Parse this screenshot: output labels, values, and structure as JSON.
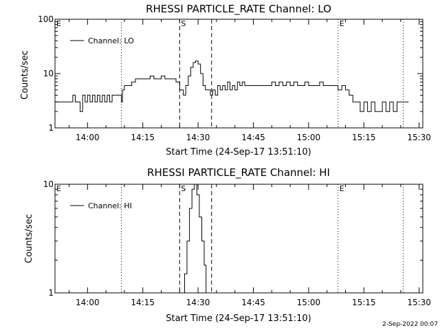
{
  "footer_timestamp": "2-Sep-2022 00:07",
  "chart_data": [
    {
      "type": "line",
      "title": "RHESSI PARTICLE_RATE Channel: LO",
      "xlabel": "Start Time (24-Sep-17 13:51:10)",
      "ylabel": "Counts/sec",
      "y_scale": "log",
      "ylim": [
        1,
        100
      ],
      "y_ticks": [
        "1",
        "10",
        "100"
      ],
      "xlim": [
        "13:51:10",
        "15:31:00"
      ],
      "x_ticks": [
        "14:00",
        "14:15",
        "14:30",
        "14:45",
        "15:00",
        "15:15",
        "15:30"
      ],
      "legend_placement": "top-left",
      "legend": [
        "Channel: LO"
      ],
      "markers": [
        {
          "label": "E",
          "time": "13:51:10",
          "style": "dotted"
        },
        {
          "label": "",
          "time": "14:09:10",
          "style": "dotted"
        },
        {
          "label": "S",
          "time": "14:25:00",
          "style": "dashed"
        },
        {
          "label": "",
          "time": "14:33:40",
          "style": "dashed"
        },
        {
          "label": "E",
          "time": "15:08:00",
          "style": "dotted"
        },
        {
          "label": "",
          "time": "15:25:40",
          "style": "dotted"
        }
      ],
      "series": [
        {
          "name": "Channel: LO",
          "x": [
            "13:51:10",
            "13:55:20",
            "13:56:00",
            "13:56:40",
            "13:57:20",
            "13:58:00",
            "13:58:40",
            "13:59:20",
            "14:00:00",
            "14:00:40",
            "14:01:20",
            "14:02:00",
            "14:02:40",
            "14:03:20",
            "14:04:00",
            "14:04:40",
            "14:05:20",
            "14:06:00",
            "14:06:40",
            "14:07:20",
            "14:08:00",
            "14:08:40",
            "14:09:10",
            "14:09:30",
            "14:10:00",
            "14:11:00",
            "14:12:00",
            "14:13:00",
            "14:14:00",
            "14:15:00",
            "14:16:00",
            "14:17:00",
            "14:18:00",
            "14:19:00",
            "14:20:00",
            "14:21:00",
            "14:22:00",
            "14:23:00",
            "14:24:00",
            "14:25:00",
            "14:26:00",
            "14:26:40",
            "14:27:20",
            "14:28:00",
            "14:28:40",
            "14:29:20",
            "14:30:00",
            "14:30:40",
            "14:31:20",
            "14:32:00",
            "14:32:40",
            "14:33:20",
            "14:34:00",
            "14:34:40",
            "14:35:20",
            "14:36:00",
            "14:36:40",
            "14:37:20",
            "14:38:00",
            "14:38:40",
            "14:39:20",
            "14:40:00",
            "14:40:40",
            "14:41:20",
            "14:42:00",
            "14:42:40",
            "14:43:20",
            "14:44:00",
            "14:45:00",
            "14:46:00",
            "14:47:00",
            "14:48:00",
            "14:49:00",
            "14:50:00",
            "14:51:00",
            "14:52:00",
            "14:53:00",
            "14:54:00",
            "14:55:00",
            "14:56:00",
            "14:57:00",
            "14:58:00",
            "14:59:00",
            "15:00:00",
            "15:01:00",
            "15:02:00",
            "15:03:00",
            "15:04:00",
            "15:05:00",
            "15:06:00",
            "15:07:00",
            "15:08:00",
            "15:09:00",
            "15:10:00",
            "15:11:00",
            "15:12:00",
            "15:13:00",
            "15:14:00",
            "15:15:00",
            "15:16:00",
            "15:17:00",
            "15:18:00",
            "15:19:00",
            "15:20:00",
            "15:21:00",
            "15:22:00",
            "15:23:00",
            "15:24:00",
            "15:25:00",
            "15:26:00"
          ],
          "values": [
            3,
            3,
            4,
            3,
            3,
            2,
            4,
            3,
            4,
            3,
            4,
            3,
            4,
            3,
            4,
            3,
            4,
            3,
            4,
            4,
            4,
            4,
            3,
            5,
            6,
            6,
            7,
            8,
            8,
            8,
            8,
            9,
            8,
            8,
            9,
            8,
            8,
            8,
            7,
            5,
            4,
            6,
            9,
            13,
            16,
            17,
            15,
            10,
            6,
            5,
            5,
            4,
            5,
            4,
            6,
            5,
            6,
            5,
            7,
            5,
            6,
            5,
            7,
            6,
            7,
            6,
            6,
            6,
            6,
            6,
            6,
            6,
            6,
            7,
            6,
            7,
            6,
            7,
            6,
            7,
            6,
            6,
            7,
            6,
            6,
            6,
            7,
            6,
            6,
            6,
            6,
            5,
            6,
            5,
            4,
            3,
            3,
            2,
            3,
            2,
            3,
            2,
            2,
            3,
            2,
            3,
            2,
            3,
            3,
            3
          ]
        }
      ]
    },
    {
      "type": "line",
      "title": "RHESSI PARTICLE_RATE Channel: HI",
      "xlabel": "Start Time (24-Sep-17 13:51:10)",
      "ylabel": "Counts/sec",
      "y_scale": "log",
      "ylim": [
        1,
        10
      ],
      "y_ticks": [
        "1",
        "10"
      ],
      "xlim": [
        "13:51:10",
        "15:31:00"
      ],
      "x_ticks": [
        "14:00",
        "14:15",
        "14:30",
        "14:45",
        "15:00",
        "15:15",
        "15:30"
      ],
      "legend_placement": "top-left",
      "legend": [
        "Channel: HI"
      ],
      "markers": [
        {
          "label": "E",
          "time": "13:51:10",
          "style": "dotted"
        },
        {
          "label": "",
          "time": "14:09:10",
          "style": "dotted"
        },
        {
          "label": "S",
          "time": "14:25:00",
          "style": "dashed"
        },
        {
          "label": "",
          "time": "14:33:40",
          "style": "dashed"
        },
        {
          "label": "E",
          "time": "15:08:00",
          "style": "dotted"
        },
        {
          "label": "",
          "time": "15:25:40",
          "style": "dotted"
        }
      ],
      "series": [
        {
          "name": "Channel: HI",
          "x": [
            "14:25:30",
            "14:26:20",
            "14:27:00",
            "14:27:40",
            "14:28:20",
            "14:29:00",
            "14:29:40",
            "14:30:20",
            "14:31:00",
            "14:31:40",
            "14:32:10"
          ],
          "values": [
            1,
            1.5,
            3,
            6,
            9,
            10,
            8,
            5,
            3,
            1.8,
            1
          ]
        }
      ]
    }
  ]
}
